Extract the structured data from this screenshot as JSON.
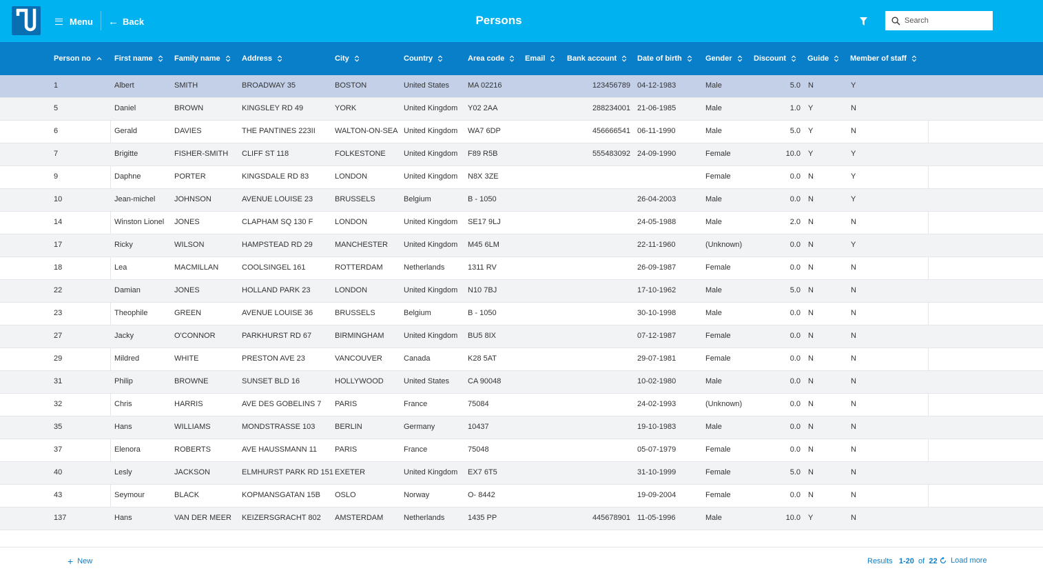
{
  "header": {
    "menu_label": "Menu",
    "back_label": "Back",
    "title": "Persons",
    "search_placeholder": "Search"
  },
  "colors": {
    "topbar": "#00b3f0",
    "table_header": "#0a7fc9",
    "selected_row": "#c4d0e8",
    "accent": "#0a7fc9"
  },
  "table": {
    "columns": [
      {
        "key": "no",
        "label": "Person no",
        "sort": "ascending"
      },
      {
        "key": "first",
        "label": "First name",
        "sort": "none"
      },
      {
        "key": "family",
        "label": "Family name",
        "sort": "none"
      },
      {
        "key": "address",
        "label": "Address",
        "sort": "none"
      },
      {
        "key": "city",
        "label": "City",
        "sort": "none"
      },
      {
        "key": "country",
        "label": "Country",
        "sort": "none"
      },
      {
        "key": "area",
        "label": "Area code",
        "sort": "none"
      },
      {
        "key": "email",
        "label": "Email",
        "sort": "none"
      },
      {
        "key": "bank",
        "label": "Bank account",
        "sort": "none"
      },
      {
        "key": "dob",
        "label": "Date of birth",
        "sort": "none"
      },
      {
        "key": "gender",
        "label": "Gender",
        "sort": "none"
      },
      {
        "key": "discount",
        "label": "Discount",
        "sort": "none"
      },
      {
        "key": "guide",
        "label": "Guide",
        "sort": "none"
      },
      {
        "key": "staff",
        "label": "Member of staff",
        "sort": "none"
      }
    ],
    "selected_row": 0,
    "rows": [
      [
        "1",
        "Albert",
        "SMITH",
        "BROADWAY 35",
        "BOSTON",
        "United States",
        "MA 02216",
        "",
        "123456789",
        "04-12-1983",
        "Male",
        "5.0",
        "N",
        "Y"
      ],
      [
        "5",
        "Daniel",
        "BROWN",
        "KINGSLEY RD 49",
        "YORK",
        "United Kingdom",
        "Y02 2AA",
        "",
        "288234001",
        "21-06-1985",
        "Male",
        "1.0",
        "Y",
        "N"
      ],
      [
        "6",
        "Gerald",
        "DAVIES",
        "THE PANTINES 223II",
        "WALTON-ON-SEA",
        "United Kingdom",
        "WA7 6DP",
        "",
        "456666541",
        "06-11-1990",
        "Male",
        "5.0",
        "Y",
        "N"
      ],
      [
        "7",
        "Brigitte",
        "FISHER-SMITH",
        "CLIFF ST 118",
        "FOLKESTONE",
        "United Kingdom",
        "F89 R5B",
        "",
        "555483092",
        "24-09-1990",
        "Female",
        "10.0",
        "Y",
        "Y"
      ],
      [
        "9",
        "Daphne",
        "PORTER",
        "KINGSDALE RD 83",
        "LONDON",
        "United Kingdom",
        "N8X 3ZE",
        "",
        "",
        "",
        "Female",
        "0.0",
        "N",
        "Y"
      ],
      [
        "10",
        "Jean-michel",
        "JOHNSON",
        "AVENUE LOUISE 23",
        "BRUSSELS",
        "Belgium",
        "B - 1050",
        "",
        "",
        "26-04-2003",
        "Male",
        "0.0",
        "N",
        "Y"
      ],
      [
        "14",
        "Winston Lionel",
        "JONES",
        "CLAPHAM SQ 130 F",
        "LONDON",
        "United Kingdom",
        "SE17 9LJ",
        "",
        "",
        "24-05-1988",
        "Male",
        "2.0",
        "N",
        "N"
      ],
      [
        "17",
        "Ricky",
        "WILSON",
        "HAMPSTEAD RD 29",
        "MANCHESTER",
        "United Kingdom",
        "M45 6LM",
        "",
        "",
        "22-11-1960",
        "(Unknown)",
        "0.0",
        "N",
        "Y"
      ],
      [
        "18",
        "Lea",
        "MACMILLAN",
        "COOLSINGEL 161",
        "ROTTERDAM",
        "Netherlands",
        "1311 RV",
        "",
        "",
        "26-09-1987",
        "Female",
        "0.0",
        "N",
        "N"
      ],
      [
        "22",
        "Damian",
        "JONES",
        "HOLLAND PARK 23",
        "LONDON",
        "United Kingdom",
        "N10 7BJ",
        "",
        "",
        "17-10-1962",
        "Male",
        "5.0",
        "N",
        "N"
      ],
      [
        "23",
        "Theophile",
        "GREEN",
        "AVENUE LOUISE 36",
        "BRUSSELS",
        "Belgium",
        "B - 1050",
        "",
        "",
        "30-10-1998",
        "Male",
        "0.0",
        "N",
        "N"
      ],
      [
        "27",
        "Jacky",
        "O'CONNOR",
        "PARKHURST RD 67",
        "BIRMINGHAM",
        "United Kingdom",
        "BU5 8IX",
        "",
        "",
        "07-12-1987",
        "Female",
        "0.0",
        "N",
        "N"
      ],
      [
        "29",
        "Mildred",
        "WHITE",
        "PRESTON AVE 23",
        "VANCOUVER",
        "Canada",
        "K28 5AT",
        "",
        "",
        "29-07-1981",
        "Female",
        "0.0",
        "N",
        "N"
      ],
      [
        "31",
        "Philip",
        "BROWNE",
        "SUNSET BLD 16",
        "HOLLYWOOD",
        "United States",
        "CA 90048",
        "",
        "",
        "10-02-1980",
        "Male",
        "0.0",
        "N",
        "N"
      ],
      [
        "32",
        "Chris",
        "HARRIS",
        "AVE DES GOBELINS 7",
        "PARIS",
        "France",
        "75084",
        "",
        "",
        "24-02-1993",
        "(Unknown)",
        "0.0",
        "N",
        "N"
      ],
      [
        "35",
        "Hans",
        "WILLIAMS",
        "MONDSTRASSE 103",
        "BERLIN",
        "Germany",
        "10437",
        "",
        "",
        "19-10-1983",
        "Male",
        "0.0",
        "N",
        "N"
      ],
      [
        "37",
        "Elenora",
        "ROBERTS",
        "AVE HAUSSMANN 11",
        "PARIS",
        "France",
        "75048",
        "",
        "",
        "05-07-1979",
        "Female",
        "0.0",
        "N",
        "N"
      ],
      [
        "40",
        "Lesly",
        "JACKSON",
        "ELMHURST PARK RD 151",
        "EXETER",
        "United Kingdom",
        "EX7 6T5",
        "",
        "",
        "31-10-1999",
        "Female",
        "5.0",
        "N",
        "N"
      ],
      [
        "43",
        "Seymour",
        "BLACK",
        "KOPMANSGATAN 15B",
        "OSLO",
        "Norway",
        "O- 8442",
        "",
        "",
        "19-09-2004",
        "Female",
        "0.0",
        "N",
        "N"
      ],
      [
        "137",
        "Hans",
        "VAN DER MEER",
        "KEIZERSGRACHT 802",
        "AMSTERDAM",
        "Netherlands",
        "1435 PP",
        "",
        "445678901",
        "11-05-1996",
        "Male",
        "10.0",
        "Y",
        "N"
      ]
    ]
  },
  "footer": {
    "new_label": "New",
    "results_label": "Results",
    "results_range": "1-20",
    "results_of": "of",
    "results_total": "22",
    "load_more_label": "Load more"
  }
}
